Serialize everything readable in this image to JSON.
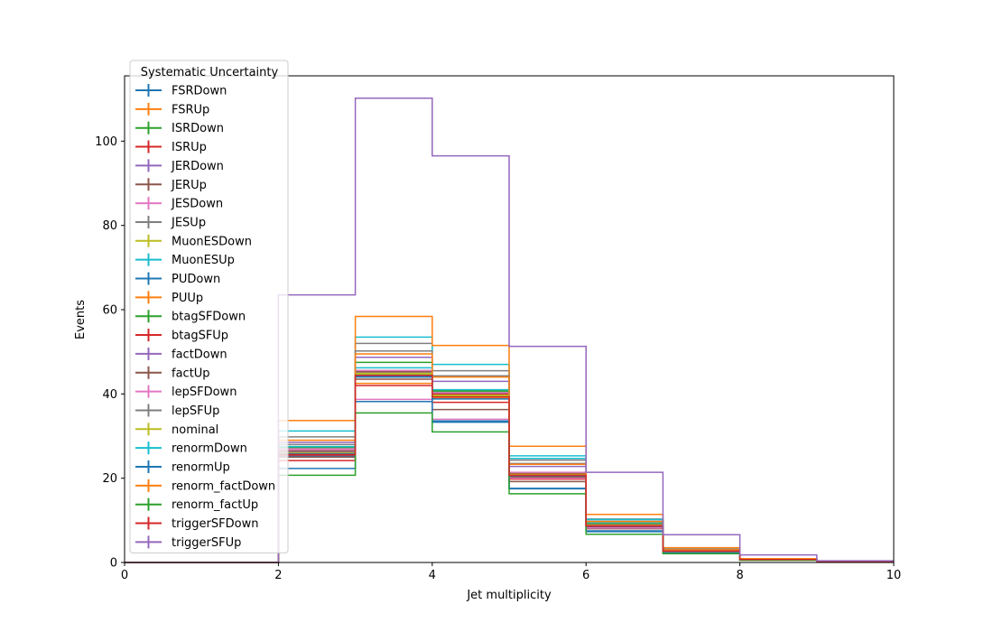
{
  "chart_data": {
    "type": "step-histogram",
    "xlabel": "Jet multiplicity",
    "ylabel": "Events",
    "xlim": [
      0,
      10
    ],
    "ylim": [
      0,
      115.5
    ],
    "x_ticks": [
      0,
      2,
      4,
      6,
      8,
      10
    ],
    "y_ticks": [
      0,
      20,
      40,
      60,
      80,
      100
    ],
    "bin_edges": [
      0,
      1,
      2,
      3,
      4,
      5,
      6,
      7,
      8,
      9,
      10
    ],
    "legend": {
      "title": "Systematic Uncertainty",
      "position": "upper-left"
    },
    "series": [
      {
        "name": "FSRDown",
        "color": "#1f77b4",
        "values": [
          0,
          0,
          22.3,
          38.2,
          33.6,
          17.6,
          7.5,
          2.3,
          0.6,
          0.2
        ]
      },
      {
        "name": "FSRUp",
        "color": "#ff7f0e",
        "values": [
          0,
          0,
          25.2,
          42.5,
          39.0,
          20.5,
          8.5,
          2.7,
          0.7,
          0.2
        ]
      },
      {
        "name": "ISRDown",
        "color": "#2ca02c",
        "values": [
          0,
          0,
          25.8,
          44.5,
          40.5,
          21.2,
          9.0,
          2.8,
          0.7,
          0.2
        ]
      },
      {
        "name": "ISRUp",
        "color": "#d62728",
        "values": [
          0,
          0,
          24.2,
          42.0,
          38.0,
          19.8,
          8.3,
          2.6,
          0.7,
          0.2
        ]
      },
      {
        "name": "JERDown",
        "color": "#9467bd",
        "values": [
          0,
          0,
          26.3,
          45.2,
          39.8,
          21.0,
          8.8,
          2.7,
          0.7,
          0.2
        ]
      },
      {
        "name": "JERUp",
        "color": "#8c564b",
        "values": [
          0,
          0,
          25.0,
          43.5,
          36.3,
          19.2,
          8.0,
          2.5,
          0.6,
          0.2
        ]
      },
      {
        "name": "JESDown",
        "color": "#e377c2",
        "values": [
          0,
          0,
          27.0,
          38.7,
          34.0,
          20.0,
          8.2,
          2.6,
          0.6,
          0.2
        ]
      },
      {
        "name": "JESUp",
        "color": "#7f7f7f",
        "values": [
          0,
          0,
          28.0,
          52.0,
          45.5,
          24.3,
          10.3,
          3.2,
          0.8,
          0.2
        ]
      },
      {
        "name": "MuonESDown",
        "color": "#bcbd22",
        "values": [
          0,
          0,
          26.0,
          44.8,
          39.6,
          20.8,
          8.7,
          2.7,
          0.7,
          0.2
        ]
      },
      {
        "name": "MuonESUp",
        "color": "#17becf",
        "values": [
          0,
          0,
          31.2,
          53.5,
          47.0,
          25.3,
          10.2,
          3.1,
          0.8,
          0.2
        ]
      },
      {
        "name": "PUDown",
        "color": "#1f77b4",
        "values": [
          0,
          0,
          25.3,
          44.0,
          38.8,
          20.4,
          8.6,
          2.7,
          0.7,
          0.2
        ]
      },
      {
        "name": "PUUp",
        "color": "#ff7f0e",
        "values": [
          0,
          0,
          33.7,
          58.4,
          51.5,
          27.6,
          11.4,
          3.5,
          0.9,
          0.3
        ]
      },
      {
        "name": "btagSFDown",
        "color": "#2ca02c",
        "values": [
          0,
          0,
          27.3,
          47.5,
          40.8,
          21.3,
          9.2,
          2.9,
          0.7,
          0.2
        ]
      },
      {
        "name": "btagSFUp",
        "color": "#d62728",
        "values": [
          0,
          0,
          25.5,
          45.5,
          40.0,
          21.0,
          8.9,
          2.8,
          0.7,
          0.2
        ]
      },
      {
        "name": "factDown",
        "color": "#9467bd",
        "values": [
          0,
          0,
          28.5,
          48.7,
          43.0,
          22.8,
          9.6,
          3.0,
          0.7,
          0.2
        ]
      },
      {
        "name": "factUp",
        "color": "#8c564b",
        "values": [
          0,
          0,
          26.5,
          45.3,
          40.2,
          20.3,
          8.7,
          2.7,
          0.7,
          0.2
        ]
      },
      {
        "name": "lepSFDown",
        "color": "#e377c2",
        "values": [
          0,
          0,
          26.8,
          45.6,
          40.3,
          21.4,
          8.9,
          2.8,
          0.7,
          0.2
        ]
      },
      {
        "name": "lepSFUp",
        "color": "#7f7f7f",
        "values": [
          0,
          0,
          29.8,
          50.2,
          44.3,
          23.5,
          9.8,
          3.1,
          0.8,
          0.2
        ]
      },
      {
        "name": "nominal",
        "color": "#bcbd22",
        "values": [
          0,
          0,
          26.0,
          44.9,
          39.7,
          20.9,
          8.8,
          2.7,
          0.7,
          0.2
        ]
      },
      {
        "name": "renormDown",
        "color": "#17becf",
        "values": [
          0,
          0,
          27.5,
          46.2,
          41.0,
          24.7,
          9.5,
          2.9,
          0.7,
          0.2
        ]
      },
      {
        "name": "renormUp",
        "color": "#1f77b4",
        "values": [
          0,
          0,
          25.8,
          44.2,
          33.3,
          17.5,
          7.3,
          2.3,
          0.6,
          0.2
        ]
      },
      {
        "name": "renorm_factDown",
        "color": "#ff7f0e",
        "values": [
          0,
          0,
          29.0,
          49.5,
          44.0,
          23.3,
          9.7,
          3.0,
          0.8,
          0.2
        ]
      },
      {
        "name": "renorm_factUp",
        "color": "#2ca02c",
        "values": [
          0,
          0,
          20.7,
          35.5,
          31.0,
          16.3,
          6.7,
          2.1,
          0.5,
          0.1
        ]
      },
      {
        "name": "triggerSFDown",
        "color": "#d62728",
        "values": [
          0,
          0,
          25.6,
          44.4,
          39.3,
          20.7,
          8.7,
          2.7,
          0.7,
          0.2
        ]
      },
      {
        "name": "triggerSFUp",
        "color": "#9467bd",
        "values": [
          0,
          0,
          63.5,
          110.2,
          96.5,
          51.3,
          21.4,
          6.6,
          1.8,
          0.4
        ]
      }
    ]
  }
}
